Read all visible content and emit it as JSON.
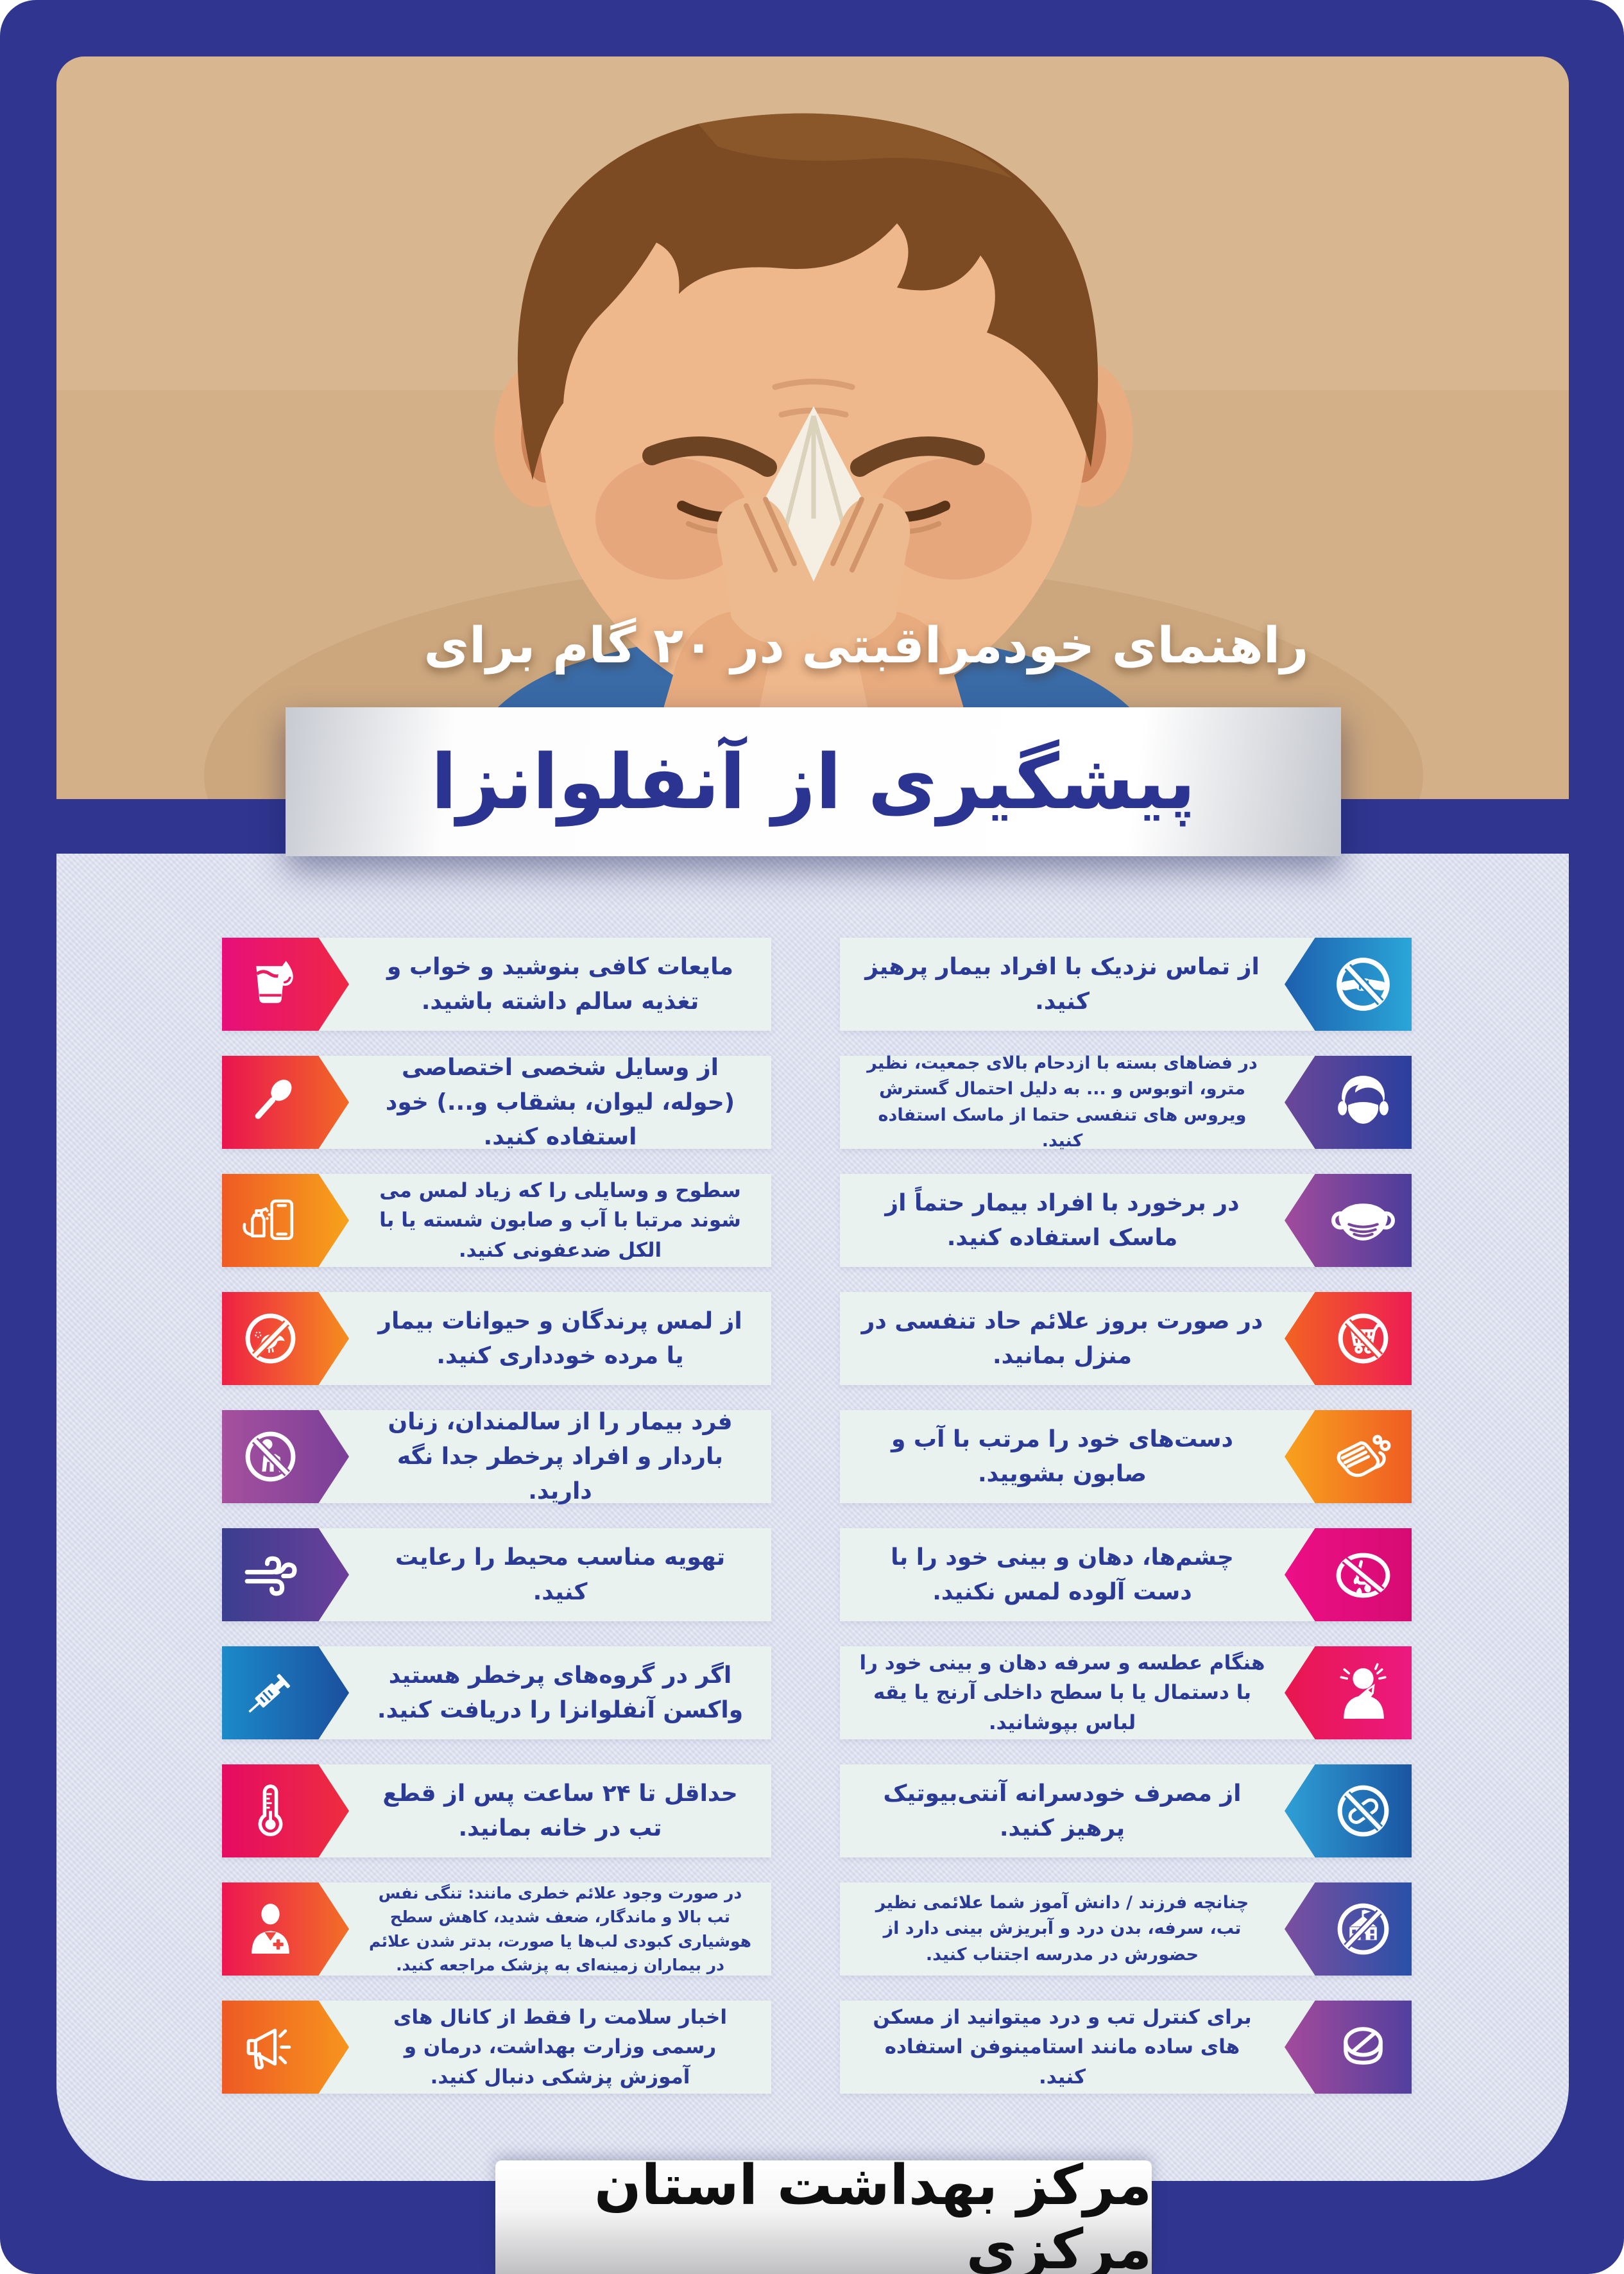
{
  "poster": {
    "top_title": "راهنمای خودمراقبتی در ۲۰ گام برای",
    "main_title": "پیشگیری از آنفلوانزا",
    "footer_text": "مرکز بهداشت استان مرکزی"
  },
  "colors": {
    "frame_blue": "#30368f",
    "panel_lavender": "#dfe3f0",
    "tip_box_bg": "#e9f2ee",
    "tip_text_color": "#2b3a94",
    "title_blue": "#2b3490",
    "top_title_color": "#ffffff",
    "footer_text_color": "#0f0f0f"
  },
  "tips_right": [
    {
      "icon": "no-handshake-icon",
      "colors": [
        "#1d5fae",
        "#2aa6d8"
      ],
      "text": "از تماس نزدیک با افراد بیمار پرهیز کنید."
    },
    {
      "icon": "masked-face-icon",
      "colors": [
        "#6b4798",
        "#2b3f9e"
      ],
      "text": "در فضاهای بسته با ازدحام بالای جمعیت، نظیر مترو، اتوبوس و ... به دلیل احتمال گسترش ویروس های تنفسی حتما از ماسک استفاده کنید."
    },
    {
      "icon": "mask-icon",
      "colors": [
        "#a14b9d",
        "#4c3d9b"
      ],
      "text": "در برخورد با افراد بیمار حتماً از ماسک استفاده کنید."
    },
    {
      "icon": "no-cart-icon",
      "colors": [
        "#f26322",
        "#ee1d53"
      ],
      "text": "در صورت بروز علائم حاد تنفسی در منزل بمانید."
    },
    {
      "icon": "washing-hands-icon",
      "colors": [
        "#f8a21e",
        "#ef5c23"
      ],
      "text": "دست‌های خود را مرتب با آب و صابون بشویید."
    },
    {
      "icon": "no-touch-nose-icon",
      "colors": [
        "#ed0f86",
        "#d60b72"
      ],
      "text": "چشم‌ها، دهان و بینی خود را با دست آلوده لمس نکنید."
    },
    {
      "icon": "sneezing-person-icon",
      "colors": [
        "#e8174f",
        "#ec1980"
      ],
      "text": "هنگام عطسه و سرفه دهان و بینی خود را با دستمال یا با سطح داخلی آرنج یا یقه لباس بپوشانید."
    },
    {
      "icon": "no-pills-icon",
      "colors": [
        "#2f9fd6",
        "#1a55a2"
      ],
      "text": "از مصرف خودسرانه آنتی‌بیوتیک پرهیز کنید."
    },
    {
      "icon": "no-school-icon",
      "colors": [
        "#7b4fa0",
        "#2950a8"
      ],
      "text": "چنانچه فرزند / دانش آموز شما علائمی نظیر تب، سرفه، بدن درد و آبریزش بینی دارد از حضورش در مدرسه اجتناب کنید."
    },
    {
      "icon": "tablet-icon",
      "colors": [
        "#a44a9c",
        "#52409e"
      ],
      "text": "برای کنترل تب و درد میتوانید از مسکن های ساده مانند استامینوفن استفاده کنید."
    }
  ],
  "tips_left": [
    {
      "icon": "water-glass-icon",
      "colors": [
        "#e70f7a",
        "#ef2744"
      ],
      "text": "مایعات کافی بنوشید و خواب و تغذیه سالم داشته باشید."
    },
    {
      "icon": "spoon-icon",
      "colors": [
        "#ea1450",
        "#f26925"
      ],
      "text": "از وسایل شخصی اختصاصی (حوله، لیوان، بشقاب و...) خود استفاده کنید."
    },
    {
      "icon": "disinfect-phone-icon",
      "colors": [
        "#ef5a24",
        "#f7a31b"
      ],
      "text": "سطوح و وسایلی را که زیاد لمس می شوند مرتبا با آب و صابون شسته یا با الکل ضدعفونی کنید."
    },
    {
      "icon": "no-bird-icon",
      "colors": [
        "#ee2045",
        "#f58e1e"
      ],
      "text": "از لمس پرندگان و حیوانات بیمار یا مرده خودداری کنید."
    },
    {
      "icon": "no-elderly-icon",
      "colors": [
        "#a6509e",
        "#7a3f98"
      ],
      "text": "فرد بیمار را از سالمندان، زنان باردار و افراد پرخطر جدا نگه دارید."
    },
    {
      "icon": "wind-icon",
      "colors": [
        "#3b3e8f",
        "#6b3f9b"
      ],
      "text": "تهویه مناسب محیط را رعایت کنید."
    },
    {
      "icon": "syringe-icon",
      "colors": [
        "#1b8ac9",
        "#1b4f9e"
      ],
      "text": "اگر در گروه‌های پرخطر هستید واکسن آنفلوانزا را دریافت کنید."
    },
    {
      "icon": "thermometer-icon",
      "colors": [
        "#e50b63",
        "#ee2d3e"
      ],
      "text": "حداقل تا ۲۴ ساعت پس از قطع تب در خانه بمانید."
    },
    {
      "icon": "doctor-icon",
      "colors": [
        "#ed1651",
        "#f26f26"
      ],
      "text": "در صورت وجود علائم خطری مانند: تنگی نفس تب بالا و ماندگار، ضعف شدید، کاهش سطح هوشیاری کبودی لب‌ها یا صورت، بدتر شدن علائم در بیماران زمینه‌ای به پزشک مراجعه کنید."
    },
    {
      "icon": "megaphone-icon",
      "colors": [
        "#ee5a24",
        "#f7941d"
      ],
      "text": "اخبار سلامت را فقط از کانال های رسمی وزارت بهداشت، درمان و آموزش پزشکی دنبال کنید."
    }
  ]
}
